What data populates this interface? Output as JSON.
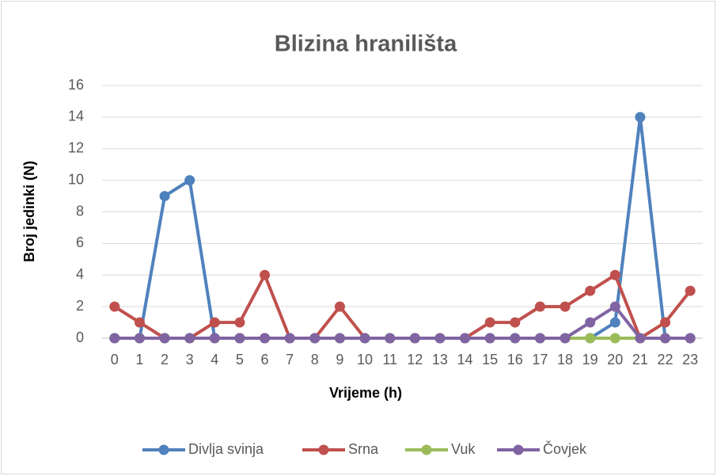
{
  "chart_data": {
    "type": "line",
    "title": "Blizina hranilišta",
    "x_label": "Vrijeme (h)",
    "y_label": "Broj jedinki (N)",
    "categories": [
      "0",
      "1",
      "2",
      "3",
      "4",
      "5",
      "6",
      "7",
      "8",
      "9",
      "10",
      "11",
      "12",
      "13",
      "14",
      "15",
      "16",
      "17",
      "18",
      "19",
      "20",
      "21",
      "22",
      "23"
    ],
    "series": [
      {
        "name": "Divlja svinja",
        "color": "#4f81bd",
        "values": [
          0,
          0,
          9,
          10,
          0,
          0,
          0,
          0,
          0,
          0,
          0,
          0,
          0,
          0,
          0,
          0,
          0,
          0,
          0,
          0,
          1,
          14,
          0,
          0
        ]
      },
      {
        "name": "Srna",
        "color": "#c0504d",
        "values": [
          2,
          1,
          0,
          0,
          1,
          1,
          4,
          0,
          0,
          2,
          0,
          0,
          0,
          0,
          0,
          1,
          1,
          2,
          2,
          3,
          4,
          0,
          1,
          3
        ]
      },
      {
        "name": "Vuk",
        "color": "#9bbb59",
        "values": [
          0,
          0,
          0,
          0,
          0,
          0,
          0,
          0,
          0,
          0,
          0,
          0,
          0,
          0,
          0,
          0,
          0,
          0,
          0,
          0,
          0,
          0,
          0,
          0
        ]
      },
      {
        "name": "Čovjek",
        "color": "#8064a2",
        "values": [
          0,
          0,
          0,
          0,
          0,
          0,
          0,
          0,
          0,
          0,
          0,
          0,
          0,
          0,
          0,
          0,
          0,
          0,
          0,
          1,
          2,
          0,
          0,
          0
        ]
      }
    ],
    "ylim": [
      0,
      16
    ],
    "yticks": [
      0,
      2,
      4,
      6,
      8,
      10,
      12,
      14,
      16
    ],
    "grid": true,
    "legend": "bottom"
  }
}
